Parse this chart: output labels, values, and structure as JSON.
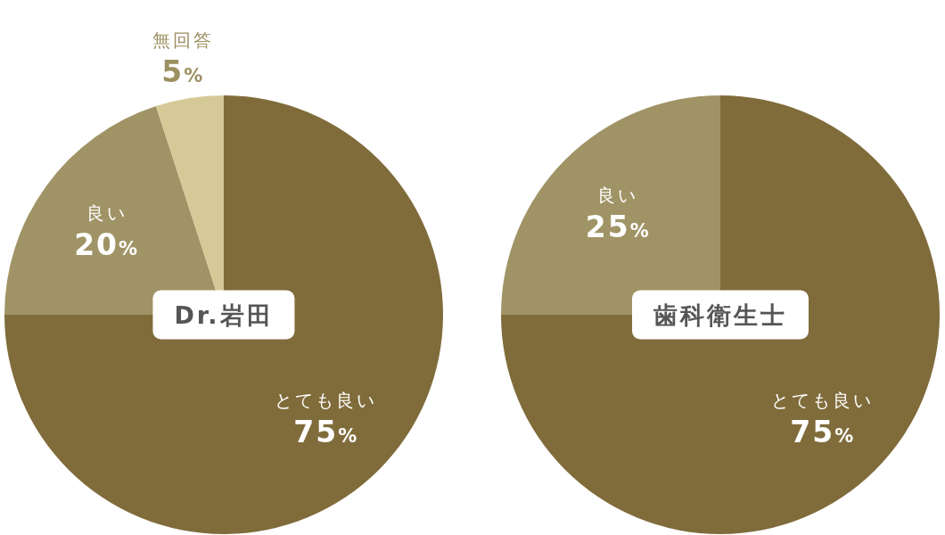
{
  "chart_data": [
    {
      "type": "pie",
      "title": "Dr.岩田",
      "categories": [
        "とても良い",
        "良い",
        "無回答"
      ],
      "values": [
        75,
        20,
        5
      ],
      "colors": [
        "#806c3b",
        "#a09466",
        "#d5c998"
      ],
      "value_labels": [
        "75%",
        "20%",
        "5%"
      ]
    },
    {
      "type": "pie",
      "title": "歯科衛生士",
      "categories": [
        "とても良い",
        "良い"
      ],
      "values": [
        75,
        25
      ],
      "colors": [
        "#806c3b",
        "#a09466"
      ],
      "value_labels": [
        "75%",
        "25%"
      ]
    }
  ]
}
